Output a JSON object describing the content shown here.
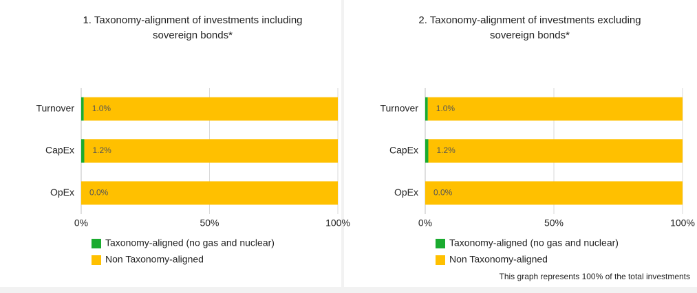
{
  "chart_data": [
    {
      "type": "stacked_barh",
      "title": [
        "1. Taxonomy-alignment of investments including",
        "sovereign bonds*"
      ],
      "categories": [
        "Turnover",
        "CapEx",
        "OpEx"
      ],
      "series": [
        {
          "name": "Taxonomy-aligned (no gas and nuclear)",
          "color": "#1aab2f",
          "values": [
            1.0,
            1.2,
            0.0
          ],
          "value_labels": [
            "1.0%",
            "1.2%",
            "0.0%"
          ]
        },
        {
          "name": "Non Taxonomy-aligned",
          "color": "#ffc000",
          "values": [
            99.0,
            98.8,
            100.0
          ]
        }
      ],
      "xlim": [
        0,
        100
      ],
      "xticks": [
        {
          "value": 0,
          "label": "0%"
        },
        {
          "value": 50,
          "label": "50%"
        },
        {
          "value": 100,
          "label": "100%"
        }
      ],
      "grid": true
    },
    {
      "type": "stacked_barh",
      "title": [
        "2. Taxonomy-alignment of investments excluding",
        "sovereign bonds*"
      ],
      "categories": [
        "Turnover",
        "CapEx",
        "OpEx"
      ],
      "series": [
        {
          "name": "Taxonomy-aligned (no gas and nuclear)",
          "color": "#1aab2f",
          "values": [
            1.0,
            1.2,
            0.0
          ],
          "value_labels": [
            "1.0%",
            "1.2%",
            "0.0%"
          ]
        },
        {
          "name": "Non Taxonomy-aligned",
          "color": "#ffc000",
          "values": [
            99.0,
            98.8,
            100.0
          ]
        }
      ],
      "xlim": [
        0,
        100
      ],
      "xticks": [
        {
          "value": 0,
          "label": "0%"
        },
        {
          "value": 50,
          "label": "50%"
        },
        {
          "value": 100,
          "label": "100%"
        }
      ],
      "grid": true,
      "annotation": "This graph represents 100% of the total investments"
    }
  ]
}
